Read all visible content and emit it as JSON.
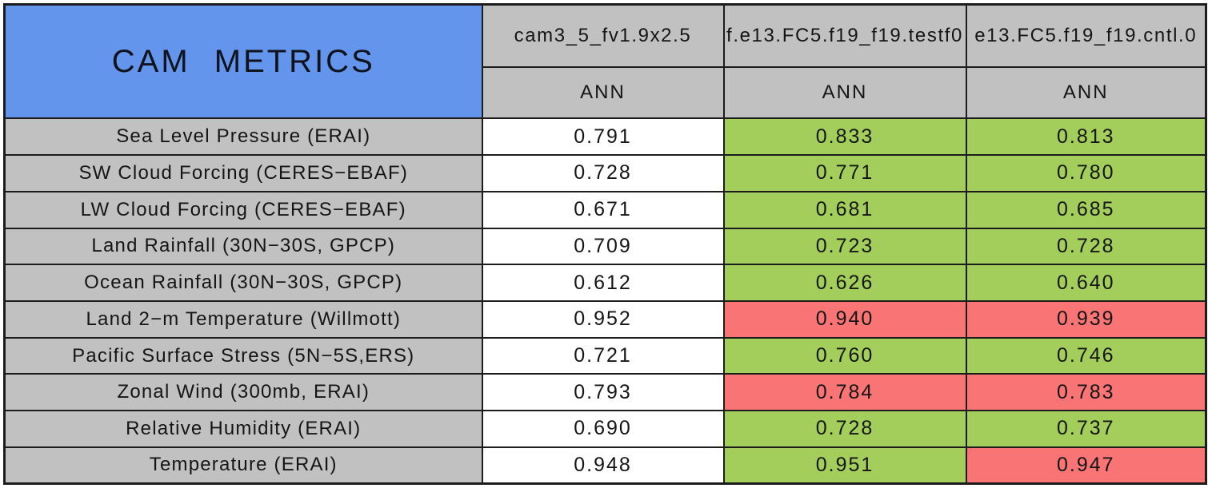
{
  "colors": {
    "blue": "#6495ED",
    "gray": "#C1C1C1",
    "green": "#A3CE5C",
    "red": "#F97474",
    "white": "#FFFFFF",
    "border": "#1c1c1c"
  },
  "chart_data": {
    "type": "table",
    "title": "CAM METRICS",
    "columns": [
      {
        "model": "cam3_5_fv1.9x2.5",
        "season": "ANN"
      },
      {
        "model": "f.e13.FC5.f19_f19.testf0",
        "season": "ANN"
      },
      {
        "model": "e13.FC5.f19_f19.cntl.0",
        "season": "ANN"
      }
    ],
    "rows": [
      {
        "label": "Sea Level Pressure (ERAI)",
        "cells": [
          {
            "value": "0.791",
            "color": "white"
          },
          {
            "value": "0.833",
            "color": "green"
          },
          {
            "value": "0.813",
            "color": "green"
          }
        ]
      },
      {
        "label": "SW Cloud Forcing (CERES−EBAF)",
        "cells": [
          {
            "value": "0.728",
            "color": "white"
          },
          {
            "value": "0.771",
            "color": "green"
          },
          {
            "value": "0.780",
            "color": "green"
          }
        ]
      },
      {
        "label": "LW Cloud Forcing (CERES−EBAF)",
        "cells": [
          {
            "value": "0.671",
            "color": "white"
          },
          {
            "value": "0.681",
            "color": "green"
          },
          {
            "value": "0.685",
            "color": "green"
          }
        ]
      },
      {
        "label": "Land Rainfall (30N−30S, GPCP)",
        "cells": [
          {
            "value": "0.709",
            "color": "white"
          },
          {
            "value": "0.723",
            "color": "green"
          },
          {
            "value": "0.728",
            "color": "green"
          }
        ]
      },
      {
        "label": "Ocean Rainfall (30N−30S, GPCP)",
        "cells": [
          {
            "value": "0.612",
            "color": "white"
          },
          {
            "value": "0.626",
            "color": "green"
          },
          {
            "value": "0.640",
            "color": "green"
          }
        ]
      },
      {
        "label": "Land 2−m Temperature (Willmott)",
        "cells": [
          {
            "value": "0.952",
            "color": "white"
          },
          {
            "value": "0.940",
            "color": "red"
          },
          {
            "value": "0.939",
            "color": "red"
          }
        ]
      },
      {
        "label": "Pacific Surface Stress (5N−5S,ERS)",
        "cells": [
          {
            "value": "0.721",
            "color": "white"
          },
          {
            "value": "0.760",
            "color": "green"
          },
          {
            "value": "0.746",
            "color": "green"
          }
        ]
      },
      {
        "label": "Zonal Wind (300mb, ERAI)",
        "cells": [
          {
            "value": "0.793",
            "color": "white"
          },
          {
            "value": "0.784",
            "color": "red"
          },
          {
            "value": "0.783",
            "color": "red"
          }
        ]
      },
      {
        "label": "Relative Humidity (ERAI)",
        "cells": [
          {
            "value": "0.690",
            "color": "white"
          },
          {
            "value": "0.728",
            "color": "green"
          },
          {
            "value": "0.737",
            "color": "green"
          }
        ]
      },
      {
        "label": "Temperature (ERAI)",
        "cells": [
          {
            "value": "0.948",
            "color": "white"
          },
          {
            "value": "0.951",
            "color": "green"
          },
          {
            "value": "0.947",
            "color": "red"
          }
        ]
      }
    ]
  }
}
